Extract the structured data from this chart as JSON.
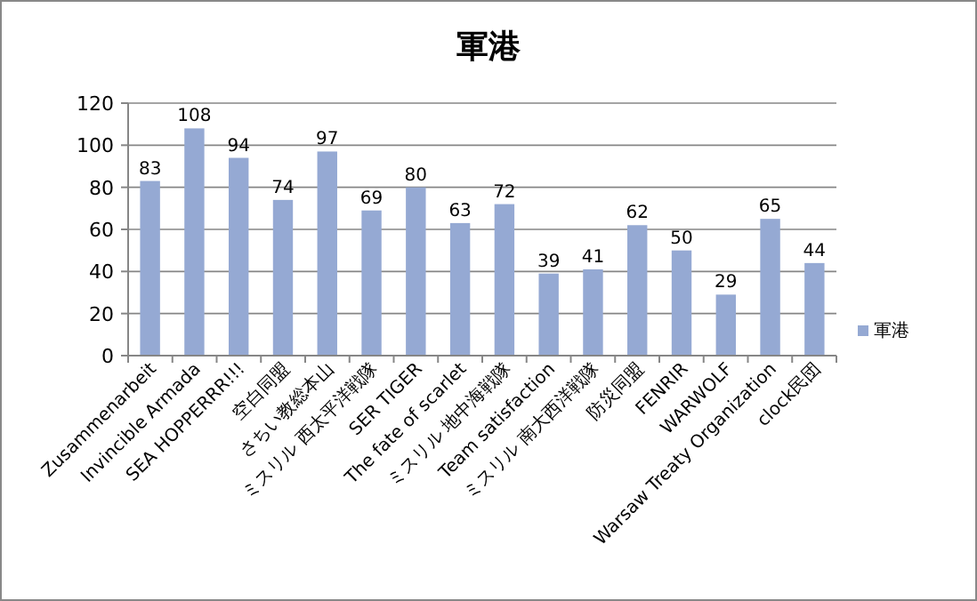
{
  "chart_data": {
    "type": "bar",
    "title": "軍港",
    "categories": [
      "Zusammenarbeit",
      "Invincible Armada",
      "SEA HOPPERRR!!!",
      "空白同盟",
      "さちい教総本山",
      "ミスリル 西太平洋戦隊",
      "SER TIGER",
      "The fate of scarlet",
      "ミスリル 地中海戦隊",
      "Team satisfaction",
      "ミスリル 南大西洋戦隊",
      "防災同盟",
      "FENRIR",
      "WARWOLF",
      "Warsaw Treaty Organization",
      "clock民団"
    ],
    "series": [
      {
        "name": "軍港",
        "color": "#95a9d3",
        "values": [
          83,
          108,
          94,
          74,
          97,
          69,
          80,
          63,
          72,
          39,
          41,
          62,
          50,
          29,
          65,
          44
        ]
      }
    ],
    "ylim": [
      0,
      120
    ],
    "yticks": [
      0,
      20,
      40,
      60,
      80,
      100,
      120
    ],
    "grid": "y",
    "data_labels": true,
    "legend": "right"
  }
}
